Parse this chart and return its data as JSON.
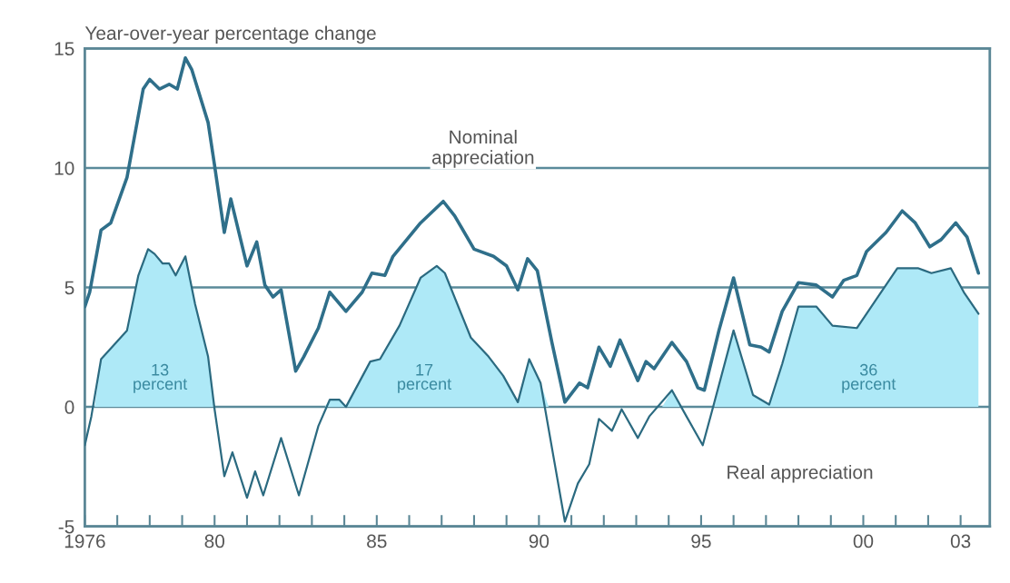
{
  "chart_data": {
    "type": "line",
    "ylabel": "Year-over-year percentage change",
    "xlim": [
      1976,
      2003.9
    ],
    "ylim": [
      -5,
      15
    ],
    "xticks": [
      {
        "value": 1976,
        "label": "1976"
      },
      {
        "value": 1977,
        "label": null
      },
      {
        "value": 1978,
        "label": null
      },
      {
        "value": 1979,
        "label": null
      },
      {
        "value": 1980,
        "label": "80"
      },
      {
        "value": 1981,
        "label": null
      },
      {
        "value": 1982,
        "label": null
      },
      {
        "value": 1983,
        "label": null
      },
      {
        "value": 1984,
        "label": null
      },
      {
        "value": 1985,
        "label": "85"
      },
      {
        "value": 1986,
        "label": null
      },
      {
        "value": 1987,
        "label": null
      },
      {
        "value": 1988,
        "label": null
      },
      {
        "value": 1989,
        "label": null
      },
      {
        "value": 1990,
        "label": "90"
      },
      {
        "value": 1991,
        "label": null
      },
      {
        "value": 1992,
        "label": null
      },
      {
        "value": 1993,
        "label": null
      },
      {
        "value": 1994,
        "label": null
      },
      {
        "value": 1995,
        "label": "95"
      },
      {
        "value": 1996,
        "label": null
      },
      {
        "value": 1997,
        "label": null
      },
      {
        "value": 1998,
        "label": null
      },
      {
        "value": 1999,
        "label": null
      },
      {
        "value": 2000,
        "label": "00"
      },
      {
        "value": 2001,
        "label": null
      },
      {
        "value": 2002,
        "label": null
      },
      {
        "value": 2003,
        "label": "03"
      }
    ],
    "yticks": [
      -5,
      0,
      5,
      10,
      15
    ],
    "grid": "y",
    "series": [
      {
        "name": "Nominal appreciation",
        "color": "#2f6f8a",
        "x": [
          1976.0,
          1976.15,
          1976.5,
          1976.8,
          1977.3,
          1977.8,
          1978.0,
          1978.3,
          1978.6,
          1978.85,
          1979.1,
          1979.3,
          1979.8,
          1980.0,
          1980.3,
          1980.5,
          1981.0,
          1981.3,
          1981.55,
          1981.8,
          1982.05,
          1982.5,
          1982.75,
          1983.2,
          1983.55,
          1984.05,
          1984.55,
          1984.85,
          1985.25,
          1985.5,
          1986.35,
          1987.05,
          1987.4,
          1988.0,
          1988.6,
          1989.0,
          1989.35,
          1989.65,
          1989.95,
          1990.4,
          1990.8,
          1991.25,
          1991.5,
          1991.85,
          1992.2,
          1992.5,
          1993.05,
          1993.3,
          1993.55,
          1994.1,
          1994.55,
          1994.9,
          1995.1,
          1995.55,
          1996.0,
          1996.5,
          1996.85,
          1997.1,
          1997.5,
          1998.0,
          1998.55,
          1999.05,
          1999.4,
          1999.8,
          2000.1,
          2000.7,
          2001.2,
          2001.6,
          2002.05,
          2002.4,
          2002.85,
          2003.2,
          2003.55
        ],
        "values": [
          4.2,
          4.8,
          7.4,
          7.7,
          9.6,
          13.3,
          13.7,
          13.3,
          13.5,
          13.3,
          14.6,
          14.1,
          11.9,
          10.1,
          7.3,
          8.7,
          5.9,
          6.9,
          5.1,
          4.6,
          4.9,
          1.5,
          2.1,
          3.3,
          4.8,
          4.0,
          4.8,
          5.6,
          5.5,
          6.3,
          7.7,
          8.6,
          8.0,
          6.6,
          6.3,
          5.9,
          4.9,
          6.2,
          5.7,
          2.7,
          0.2,
          1.0,
          0.8,
          2.5,
          1.7,
          2.8,
          1.1,
          1.9,
          1.6,
          2.7,
          1.9,
          0.8,
          0.7,
          3.2,
          5.4,
          2.6,
          2.5,
          2.3,
          4.0,
          5.2,
          5.1,
          4.6,
          5.3,
          5.5,
          6.5,
          7.3,
          8.2,
          7.7,
          6.7,
          7.0,
          7.7,
          7.1,
          5.6
        ]
      },
      {
        "name": "Real appreciation",
        "color": "#2b6a80",
        "x": [
          1976.0,
          1976.2,
          1976.5,
          1976.9,
          1977.3,
          1977.65,
          1977.95,
          1978.15,
          1978.4,
          1978.6,
          1978.8,
          1979.1,
          1979.4,
          1979.8,
          1980.0,
          1980.3,
          1980.55,
          1981.0,
          1981.25,
          1981.5,
          1982.05,
          1982.6,
          1983.2,
          1983.55,
          1983.85,
          1984.05,
          1984.8,
          1985.1,
          1985.7,
          1986.35,
          1986.85,
          1987.1,
          1987.9,
          1988.45,
          1988.9,
          1989.35,
          1989.7,
          1990.05,
          1990.8,
          1991.2,
          1991.55,
          1991.85,
          1992.25,
          1992.55,
          1993.05,
          1993.4,
          1994.1,
          1994.55,
          1995.05,
          1995.35,
          1996.0,
          1996.6,
          1997.1,
          1997.5,
          1998.0,
          1998.55,
          1999.05,
          1999.8,
          2000.4,
          2001.05,
          2001.7,
          2002.1,
          2002.7,
          2003.1,
          2003.55
        ],
        "values": [
          -1.6,
          -0.4,
          2.0,
          2.6,
          3.2,
          5.5,
          6.6,
          6.4,
          6.0,
          6.0,
          5.5,
          6.3,
          4.3,
          2.1,
          -0.1,
          -2.9,
          -1.9,
          -3.8,
          -2.7,
          -3.7,
          -1.3,
          -3.7,
          -0.8,
          0.3,
          0.3,
          0.0,
          1.9,
          2.0,
          3.4,
          5.4,
          5.9,
          5.6,
          2.9,
          2.1,
          1.3,
          0.2,
          2.0,
          1.0,
          -4.8,
          -3.2,
          -2.4,
          -0.5,
          -1.0,
          -0.1,
          -1.3,
          -0.4,
          0.7,
          -0.4,
          -1.6,
          -0.1,
          3.2,
          0.5,
          0.1,
          1.8,
          4.2,
          4.2,
          3.4,
          3.3,
          4.5,
          5.8,
          5.8,
          5.6,
          5.8,
          4.8,
          3.9
        ]
      },
      {
        "color": "#aee9f7",
        "type": "area",
        "x": [
          1976.3,
          1976.5,
          1976.9,
          1977.3,
          1977.65,
          1977.95,
          1978.15,
          1978.4,
          1978.6,
          1978.8,
          1979.1,
          1979.4,
          1979.8,
          1979.99,
          1983.4,
          1983.55,
          1983.85,
          1984.05,
          1984.8,
          1985.1,
          1985.7,
          1986.35,
          1986.85,
          1987.1,
          1987.9,
          1988.45,
          1988.9,
          1989.35,
          1989.7,
          1990.05,
          1990.3,
          1993.8,
          1994.1,
          1994.35,
          1995.4,
          1996.0,
          1996.6,
          1997.1,
          1997.5,
          1998.0,
          1998.55,
          1999.05,
          1999.8,
          2000.4,
          2001.05,
          2001.7,
          2002.1,
          2002.7,
          2003.1,
          2003.55
        ],
        "values": [
          0.0,
          2.0,
          2.6,
          3.2,
          5.5,
          6.6,
          6.4,
          6.0,
          6.0,
          5.5,
          6.3,
          4.3,
          2.1,
          0.0,
          0.0,
          0.3,
          0.3,
          0.0,
          1.9,
          2.0,
          3.4,
          5.4,
          5.9,
          5.6,
          2.9,
          2.1,
          1.3,
          0.2,
          2.0,
          1.0,
          0.0,
          0.0,
          0.7,
          0.0,
          0.0,
          3.2,
          0.5,
          0.1,
          1.8,
          4.2,
          4.2,
          3.4,
          3.3,
          4.5,
          5.8,
          5.8,
          5.6,
          5.8,
          4.8,
          3.9
        ]
      }
    ],
    "annotations": [
      "13\npercent",
      "17\npercent",
      "36\npercent"
    ]
  }
}
